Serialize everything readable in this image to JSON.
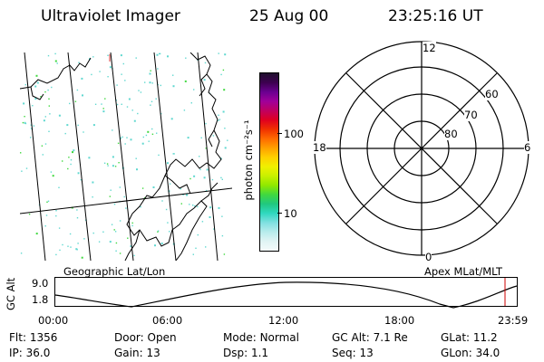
{
  "header": {
    "instrument": "Ultraviolet Imager",
    "date": "25 Aug 00",
    "time": "23:25:16 UT"
  },
  "colorbar": {
    "label": "photon cm⁻²s⁻¹",
    "ticks": [
      "100",
      "10"
    ],
    "colors": [
      "#20102e",
      "#3d0050",
      "#6a0090",
      "#a0009a",
      "#c00060",
      "#e00020",
      "#f03000",
      "#ff6a00",
      "#ffa000",
      "#ffd000",
      "#f0f000",
      "#c8f000",
      "#90e800",
      "#40d840",
      "#20c880",
      "#30d8c0",
      "#80e0e0",
      "#b8ecec",
      "#e0f4f4",
      "#f4fafa"
    ]
  },
  "left_panel": {
    "label": "Geographic Lat/Lon"
  },
  "polar_plot": {
    "label": "Apex MLat/MLT",
    "mlt_labels": {
      "top": "12",
      "bottom": "0",
      "left": "18",
      "right": "6"
    },
    "lat_labels": [
      "60",
      "70",
      "80"
    ]
  },
  "altitude_plot": {
    "ylabel": "GC Alt",
    "y_ticks": [
      "9.0",
      "1.8"
    ],
    "x_ticks": [
      "00:00",
      "06:00",
      "12:00",
      "18:00",
      "23:59"
    ],
    "marker_color": "#cc0000"
  },
  "info": {
    "row1": [
      {
        "key": "Flt:",
        "value": "1356"
      },
      {
        "key": "Door:",
        "value": "Open"
      },
      {
        "key": "Mode:",
        "value": "Normal"
      },
      {
        "key": "GC Alt:",
        "value": "7.1 Re"
      },
      {
        "key": "GLat:",
        "value": "11.2"
      }
    ],
    "row2": [
      {
        "key": "IP:",
        "value": "36.0"
      },
      {
        "key": "Gain:",
        "value": "13"
      },
      {
        "key": "Dsp:",
        "value": "1.1"
      },
      {
        "key": "Seq:",
        "value": "13"
      },
      {
        "key": "GLon:",
        "value": "34.0"
      }
    ]
  }
}
